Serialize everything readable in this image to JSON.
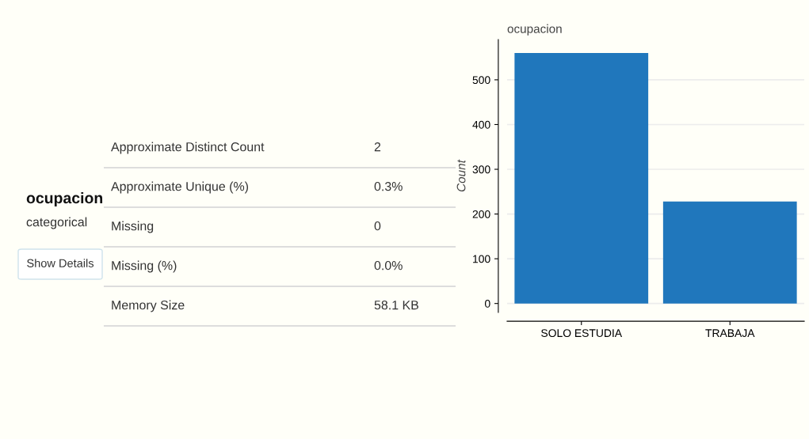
{
  "chart_data": [
    {
      "type": "other",
      "title": "ocupacion",
      "subtitle": "categorical",
      "annotations": [
        "Show Details",
        "Approximate Distinct Count",
        "2",
        "Approximate Unique (%)",
        "0.3%",
        "Missing",
        "0",
        "Missing (%)",
        "0.0%",
        "Memory Size",
        "58.1 KB"
      ]
    },
    {
      "type": "bar",
      "title": "ocupacion",
      "ylabel": "Count",
      "categories": [
        "SOLO ESTUDIA",
        "TRABAJA"
      ],
      "values": [
        560,
        228
      ],
      "color": "#2077bc",
      "ylim": [
        -20,
        590
      ],
      "yticks": [
        0,
        100,
        200,
        300,
        400,
        500
      ],
      "grid": "y"
    }
  ]
}
